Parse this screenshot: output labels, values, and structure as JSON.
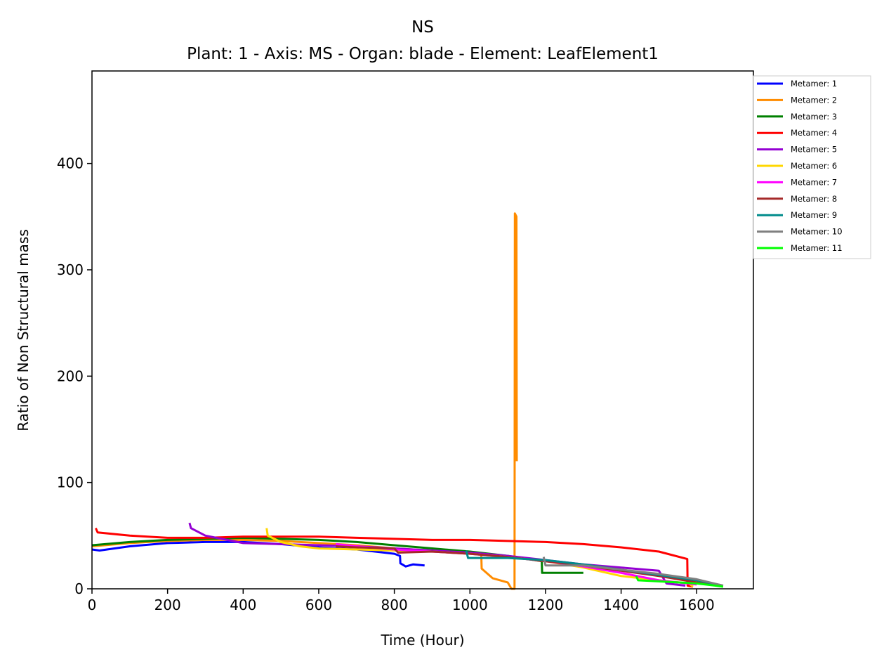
{
  "chart_data": {
    "type": "line",
    "title": "NS",
    "subtitle": "Plant: 1 - Axis: MS - Organ: blade - Element: LeafElement1",
    "xlabel": "Time (Hour)",
    "ylabel": "Ratio of Non Structural mass",
    "xlim": [
      0,
      1750
    ],
    "ylim": [
      0,
      487
    ],
    "x_ticks": [
      "0",
      "200",
      "400",
      "600",
      "800",
      "1000",
      "1200",
      "1400",
      "1600"
    ],
    "y_ticks": [
      "0",
      "100",
      "200",
      "300",
      "400"
    ],
    "grid": false,
    "legend_position": "outside-top-right",
    "series": [
      {
        "name": "Metamer: 1",
        "color": "#0000ff",
        "x": [
          0,
          20,
          100,
          200,
          300,
          400,
          500,
          600,
          700,
          800,
          815,
          816,
          830,
          850,
          880
        ],
        "y": [
          37,
          36,
          40,
          43,
          44,
          44,
          42,
          39,
          37,
          33,
          31,
          24,
          21,
          23,
          22
        ]
      },
      {
        "name": "Metamer: 2",
        "color": "#ff8c00",
        "x": [
          0,
          100,
          200,
          300,
          400,
          500,
          600,
          700,
          800,
          900,
          1000,
          1030,
          1031,
          1060,
          1100,
          1110,
          1118,
          1119,
          1123,
          1124
        ],
        "y": [
          40,
          43,
          45,
          46,
          46,
          45,
          43,
          41,
          38,
          36,
          34,
          33,
          19,
          10,
          6,
          0,
          0,
          353,
          350,
          120
        ]
      },
      {
        "name": "Metamer: 3",
        "color": "#008000",
        "x": [
          0,
          100,
          200,
          300,
          400,
          500,
          600,
          700,
          800,
          900,
          1000,
          1100,
          1190,
          1191,
          1250,
          1300
        ],
        "y": [
          41,
          44,
          46,
          47,
          48,
          47,
          46,
          44,
          41,
          38,
          35,
          31,
          26,
          15,
          15,
          15
        ]
      },
      {
        "name": "Metamer: 4",
        "color": "#ff0000",
        "x": [
          10,
          15,
          100,
          200,
          300,
          400,
          500,
          600,
          700,
          800,
          900,
          1000,
          1100,
          1200,
          1300,
          1400,
          1500,
          1575,
          1576,
          1590
        ],
        "y": [
          57,
          53,
          50,
          48,
          48,
          49,
          49,
          49,
          48,
          47,
          46,
          46,
          45,
          44,
          42,
          39,
          35,
          28,
          3,
          2
        ]
      },
      {
        "name": "Metamer: 5",
        "color": "#9400d3",
        "x": [
          258,
          262,
          300,
          400,
          500,
          600,
          700,
          800,
          900,
          1000,
          1100,
          1200,
          1300,
          1400,
          1500,
          1520,
          1570
        ],
        "y": [
          62,
          57,
          50,
          43,
          42,
          41,
          40,
          38,
          36,
          34,
          31,
          27,
          23,
          20,
          17,
          5,
          3
        ]
      },
      {
        "name": "Metamer: 6",
        "color": "#ffd700",
        "x": [
          462,
          465,
          500,
          550,
          600,
          700,
          800,
          900,
          1000,
          1100,
          1200,
          1300,
          1400,
          1500,
          1580,
          1590
        ],
        "y": [
          57,
          50,
          44,
          40,
          38,
          37,
          36,
          35,
          33,
          30,
          26,
          20,
          12,
          8,
          5,
          2
        ]
      },
      {
        "name": "Metamer: 7",
        "color": "#ff00ff",
        "x": [
          645,
          700,
          800,
          900,
          1000,
          1100,
          1200,
          1300,
          1400,
          1500,
          1600
        ],
        "y": [
          42,
          40,
          37,
          35,
          33,
          30,
          26,
          21,
          15,
          8,
          4
        ]
      },
      {
        "name": "Metamer: 8",
        "color": "#a52a2a",
        "x": [
          645,
          700,
          800,
          810,
          900,
          1000,
          1100,
          1200,
          1300,
          1400,
          1500,
          1600,
          1660
        ],
        "y": [
          40,
          39,
          38,
          34,
          35,
          33,
          30,
          26,
          22,
          17,
          12,
          6,
          3
        ]
      },
      {
        "name": "Metamer: 9",
        "color": "#008b8b",
        "x": [
          990,
          995,
          1100,
          1200,
          1300,
          1400,
          1500,
          1600,
          1670
        ],
        "y": [
          36,
          29,
          29,
          27,
          23,
          18,
          13,
          8,
          3
        ]
      },
      {
        "name": "Metamer: 10",
        "color": "#808080",
        "x": [
          1195,
          1200,
          1300,
          1400,
          1500,
          1600,
          1670
        ],
        "y": [
          30,
          22,
          22,
          18,
          14,
          9,
          3
        ]
      },
      {
        "name": "Metamer: 11",
        "color": "#00ff00",
        "x": [
          1440,
          1445,
          1500,
          1550,
          1600,
          1650,
          1670
        ],
        "y": [
          12,
          8,
          7,
          6,
          5,
          3,
          2
        ]
      }
    ]
  }
}
